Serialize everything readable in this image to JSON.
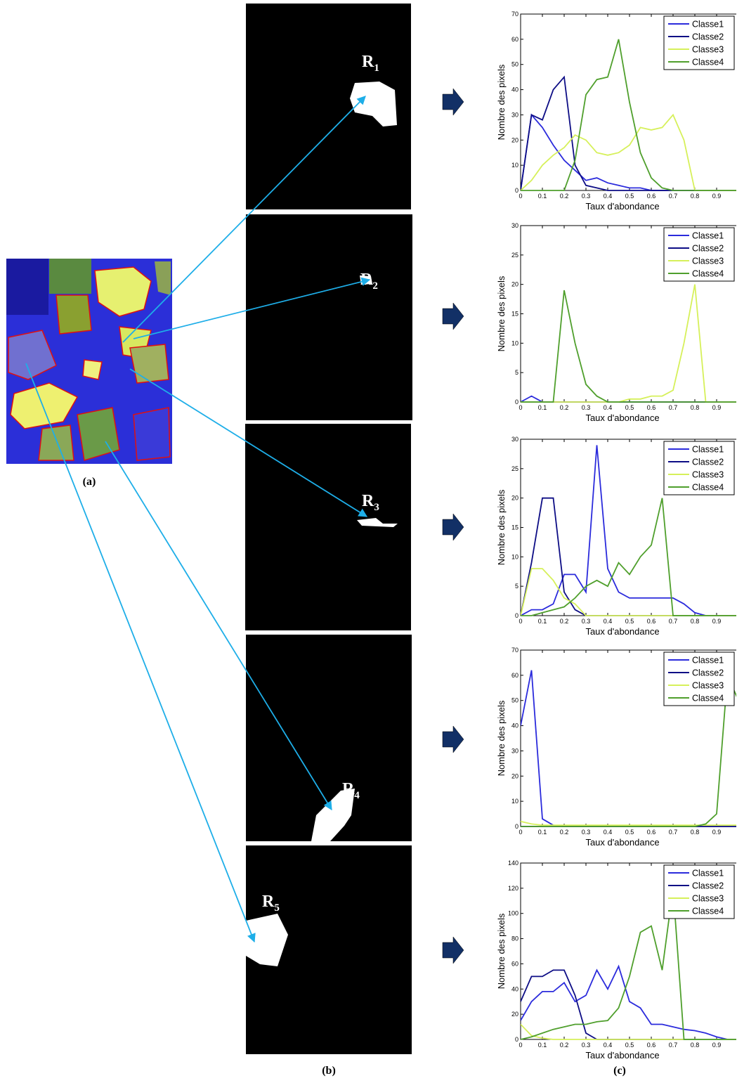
{
  "figure": {
    "panel_a_label": "(a)",
    "panel_b_label": "(b)",
    "panel_c_label": "(c)",
    "regions": [
      {
        "letter": "R",
        "subscript": "1"
      },
      {
        "letter": "R",
        "subscript": "2"
      },
      {
        "letter": "R",
        "subscript": "3"
      },
      {
        "letter": "R",
        "subscript": "4"
      },
      {
        "letter": "R",
        "subscript": "5"
      }
    ]
  },
  "chart_data": [
    {
      "type": "line",
      "xlabel": "Taux d'abondance",
      "ylabel": "Nombre des pixels",
      "legend": "upper right",
      "x": [
        0,
        0.05,
        0.1,
        0.15,
        0.2,
        0.25,
        0.3,
        0.35,
        0.4,
        0.45,
        0.5,
        0.55,
        0.6,
        0.65,
        0.7,
        0.75,
        0.8,
        0.85,
        0.9,
        0.95,
        1
      ],
      "xlim": [
        0,
        1
      ],
      "xticks": [
        0,
        0.1,
        0.2,
        0.3,
        0.4,
        0.5,
        0.6,
        0.7,
        0.8,
        0.9
      ],
      "ylim": [
        0,
        70
      ],
      "yticks": [
        0,
        10,
        20,
        30,
        40,
        50,
        60,
        70
      ],
      "series": [
        {
          "name": "Classe1",
          "color": "#2b2bdc",
          "values": [
            0,
            30,
            25,
            18,
            12,
            8,
            4,
            5,
            3,
            2,
            1,
            1,
            0,
            0,
            0,
            0,
            0,
            0,
            0,
            0,
            0
          ]
        },
        {
          "name": "Classe2",
          "color": "#0d0d85",
          "values": [
            0,
            30,
            28,
            40,
            45,
            10,
            2,
            1,
            0,
            0,
            0,
            0,
            0,
            0,
            0,
            0,
            0,
            0,
            0,
            0,
            0
          ]
        },
        {
          "name": "Classe3",
          "color": "#d6f05a",
          "values": [
            0,
            4,
            10,
            14,
            17,
            22,
            20,
            15,
            14,
            15,
            18,
            25,
            24,
            25,
            30,
            20,
            0,
            0,
            0,
            0,
            0
          ]
        },
        {
          "name": "Classe4",
          "color": "#4f9f2c",
          "values": [
            0,
            0,
            0,
            0,
            0,
            12,
            38,
            44,
            45,
            60,
            35,
            15,
            5,
            1,
            0,
            0,
            0,
            0,
            0,
            0,
            0
          ]
        }
      ]
    },
    {
      "type": "line",
      "xlabel": "Taux d'abondance",
      "ylabel": "Nombre des pixels",
      "legend": "upper right",
      "x": [
        0,
        0.05,
        0.1,
        0.15,
        0.2,
        0.25,
        0.3,
        0.35,
        0.4,
        0.45,
        0.5,
        0.55,
        0.6,
        0.65,
        0.7,
        0.75,
        0.8,
        0.85,
        0.9,
        0.95,
        1
      ],
      "xlim": [
        0,
        1
      ],
      "xticks": [
        0,
        0.1,
        0.2,
        0.3,
        0.4,
        0.5,
        0.6,
        0.7,
        0.8,
        0.9
      ],
      "ylim": [
        0,
        30
      ],
      "yticks": [
        0,
        5,
        10,
        15,
        20,
        25,
        30
      ],
      "series": [
        {
          "name": "Classe1",
          "color": "#2b2bdc",
          "values": [
            0,
            1,
            0,
            0,
            0,
            0,
            0,
            0,
            0,
            0,
            0,
            0,
            0,
            0,
            0,
            0,
            0,
            0,
            0,
            0,
            0
          ]
        },
        {
          "name": "Classe2",
          "color": "#0d0d85",
          "values": [
            0,
            0,
            0,
            0,
            0,
            0,
            0,
            0,
            0,
            0,
            0,
            0,
            0,
            0,
            0,
            0,
            0,
            0,
            0,
            0,
            0
          ]
        },
        {
          "name": "Classe3",
          "color": "#d6f05a",
          "values": [
            0,
            0,
            0,
            0,
            0,
            0,
            0,
            0,
            0,
            0,
            0.5,
            0.5,
            1,
            1,
            2,
            10,
            20,
            0,
            0,
            0,
            0
          ]
        },
        {
          "name": "Classe4",
          "color": "#4f9f2c",
          "values": [
            0,
            0,
            0,
            0,
            19,
            10,
            3,
            1,
            0,
            0,
            0,
            0,
            0,
            0,
            0,
            0,
            0,
            0,
            0,
            0,
            0
          ]
        }
      ]
    },
    {
      "type": "line",
      "xlabel": "Taux d'abondance",
      "ylabel": "Nombre des pixels",
      "legend": "upper right",
      "x": [
        0,
        0.05,
        0.1,
        0.15,
        0.2,
        0.25,
        0.3,
        0.35,
        0.4,
        0.45,
        0.5,
        0.55,
        0.6,
        0.65,
        0.7,
        0.75,
        0.8,
        0.85,
        0.9,
        0.95,
        1
      ],
      "xlim": [
        0,
        1
      ],
      "xticks": [
        0,
        0.1,
        0.2,
        0.3,
        0.4,
        0.5,
        0.6,
        0.7,
        0.8,
        0.9
      ],
      "ylim": [
        0,
        30
      ],
      "yticks": [
        0,
        5,
        10,
        15,
        20,
        25,
        30
      ],
      "series": [
        {
          "name": "Classe1",
          "color": "#2b2bdc",
          "values": [
            0,
            1,
            1,
            2,
            7,
            7,
            4,
            29,
            8,
            4,
            3,
            3,
            3,
            3,
            3,
            2,
            0.5,
            0,
            0,
            0,
            0
          ]
        },
        {
          "name": "Classe2",
          "color": "#0d0d85",
          "values": [
            0,
            9,
            20,
            20,
            4,
            1,
            0,
            0,
            0,
            0,
            0,
            0,
            0,
            0,
            0,
            0,
            0,
            0,
            0,
            0,
            0
          ]
        },
        {
          "name": "Classe3",
          "color": "#d6f05a",
          "values": [
            0,
            8,
            8,
            6,
            3,
            2,
            0,
            0,
            0,
            0,
            0,
            0,
            0,
            0,
            0,
            0,
            0,
            0,
            0,
            0,
            0
          ]
        },
        {
          "name": "Classe4",
          "color": "#4f9f2c",
          "values": [
            0,
            0,
            0.5,
            1,
            1.5,
            3,
            5,
            6,
            5,
            9,
            7,
            10,
            12,
            20,
            0,
            0,
            0,
            0,
            0,
            0,
            0
          ]
        }
      ]
    },
    {
      "type": "line",
      "xlabel": "Taux d'abondance",
      "ylabel": "Nombre des pixels",
      "legend": "upper right",
      "x": [
        0,
        0.05,
        0.1,
        0.15,
        0.2,
        0.25,
        0.3,
        0.35,
        0.4,
        0.45,
        0.5,
        0.55,
        0.6,
        0.65,
        0.7,
        0.75,
        0.8,
        0.85,
        0.9,
        0.95,
        1
      ],
      "xlim": [
        0,
        1
      ],
      "xticks": [
        0,
        0.1,
        0.2,
        0.3,
        0.4,
        0.5,
        0.6,
        0.7,
        0.8,
        0.9
      ],
      "ylim": [
        0,
        70
      ],
      "yticks": [
        0,
        10,
        20,
        30,
        40,
        50,
        60,
        70
      ],
      "series": [
        {
          "name": "Classe1",
          "color": "#2b2bdc",
          "values": [
            40,
            62,
            3,
            0.5,
            0,
            0,
            0,
            0,
            0,
            0,
            0,
            0,
            0,
            0,
            0,
            0,
            0,
            0,
            0,
            0,
            0
          ]
        },
        {
          "name": "Classe2",
          "color": "#0d0d85",
          "values": [
            0,
            0,
            0,
            0,
            0,
            0,
            0,
            0,
            0,
            0,
            0,
            0,
            0,
            0,
            0,
            0,
            0,
            0,
            0,
            0,
            0
          ]
        },
        {
          "name": "Classe3",
          "color": "#d6f05a",
          "values": [
            2,
            1,
            0.5,
            0.5,
            0.5,
            0.5,
            0.5,
            0.5,
            0.5,
            0.5,
            0.5,
            0.5,
            0.5,
            0.5,
            0.5,
            0.5,
            0.5,
            0.5,
            0.5,
            0.5,
            0.5
          ]
        },
        {
          "name": "Classe4",
          "color": "#4f9f2c",
          "values": [
            0,
            0,
            0,
            0,
            0,
            0,
            0,
            0,
            0,
            0,
            0,
            0,
            0,
            0,
            0,
            0,
            0,
            1,
            5,
            60,
            50
          ]
        }
      ]
    },
    {
      "type": "line",
      "xlabel": "Taux d'abondance",
      "ylabel": "Nombre des pixels",
      "legend": "upper right",
      "x": [
        0,
        0.05,
        0.1,
        0.15,
        0.2,
        0.25,
        0.3,
        0.35,
        0.4,
        0.45,
        0.5,
        0.55,
        0.6,
        0.65,
        0.7,
        0.75,
        0.8,
        0.85,
        0.9,
        0.95,
        1
      ],
      "xlim": [
        0,
        1
      ],
      "xticks": [
        0,
        0.1,
        0.2,
        0.3,
        0.4,
        0.5,
        0.6,
        0.7,
        0.8,
        0.9
      ],
      "ylim": [
        0,
        140
      ],
      "yticks": [
        0,
        20,
        40,
        60,
        80,
        100,
        120,
        140
      ],
      "series": [
        {
          "name": "Classe1",
          "color": "#2b2bdc",
          "values": [
            15,
            30,
            38,
            38,
            45,
            30,
            35,
            55,
            40,
            58,
            30,
            25,
            12,
            12,
            10,
            8,
            7,
            5,
            2,
            0,
            0
          ]
        },
        {
          "name": "Classe2",
          "color": "#0d0d85",
          "values": [
            30,
            50,
            50,
            55,
            55,
            35,
            5,
            0,
            0,
            0,
            0,
            0,
            0,
            0,
            0,
            0,
            0,
            0,
            0,
            0,
            0
          ]
        },
        {
          "name": "Classe3",
          "color": "#d6f05a",
          "values": [
            12,
            3,
            1,
            0,
            0,
            0,
            0,
            0,
            0,
            0,
            0,
            0,
            0,
            0,
            0,
            0,
            0,
            0,
            0,
            0,
            0
          ]
        },
        {
          "name": "Classe4",
          "color": "#4f9f2c",
          "values": [
            0,
            2,
            5,
            8,
            10,
            12,
            12,
            14,
            15,
            25,
            50,
            85,
            90,
            55,
            120,
            0,
            0,
            0,
            0,
            0,
            0
          ]
        }
      ]
    }
  ]
}
